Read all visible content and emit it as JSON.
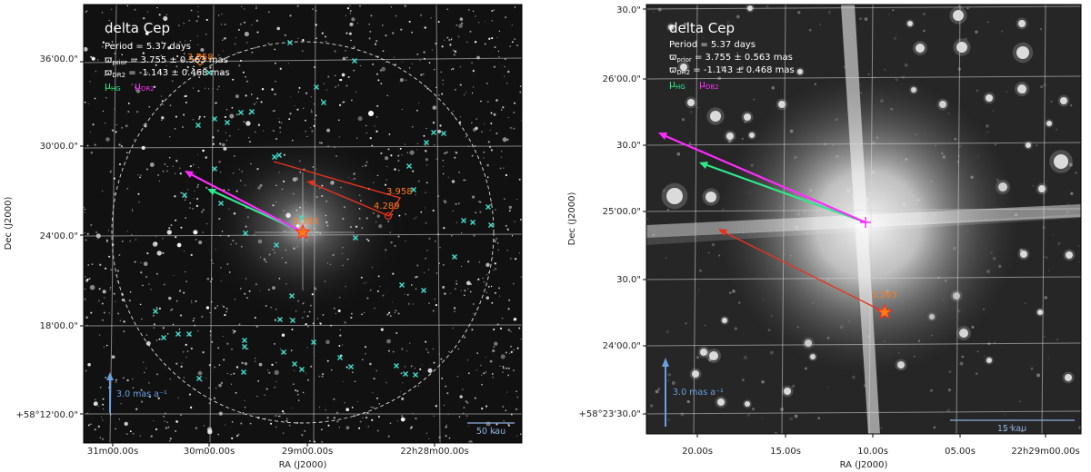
{
  "figure": {
    "description_free": true
  },
  "chart_data": [
    {
      "type": "scatter",
      "panel": "left",
      "title": "delta Cep",
      "period_label": "Period =   5.37 days",
      "parallax_prior": {
        "symbol": "ϖ",
        "sub": "prior",
        "text": " = 3.755 ± 0.563 mas"
      },
      "parallax_dr2": {
        "symbol": "ϖ",
        "sub": "DR2",
        "text": " = -1.143 ± 0.468 mas"
      },
      "legend": [
        {
          "symbol": "μ",
          "sub": "HG",
          "color": "#2ee88a"
        },
        {
          "symbol": "μ",
          "sub": "DR2",
          "color": "#ff2bff"
        }
      ],
      "xlabel": "RA (J2000)",
      "ylabel": "Dec (J2000)",
      "x_ticks": [
        "31m00.00s",
        "30m00.00s",
        "29m00.00s",
        "22h28m00.00s"
      ],
      "y_ticks": [
        "36'00.0\"",
        "30'00.0\"",
        "24'00.0\"",
        "18'00.0\"",
        "+58°12'00.0\""
      ],
      "scale_arrow_label": "3.0 mas a⁻¹",
      "scalebar_label": "50 kau",
      "annotations": [
        "3.393",
        "3.958",
        "4.289",
        "3.558"
      ],
      "neighbors_marker": "x",
      "neighbors_color": "#40e0d0"
    },
    {
      "type": "scatter",
      "panel": "right",
      "title": "delta Cep",
      "period_label": "Period =   5.37 days",
      "parallax_prior": {
        "symbol": "ϖ",
        "sub": "prior",
        "text": " = 3.755 ± 0.563 mas"
      },
      "parallax_dr2": {
        "symbol": "ϖ",
        "sub": "DR2",
        "text": " = -1.143 ± 0.468 mas"
      },
      "legend": [
        {
          "symbol": "μ",
          "sub": "HG",
          "color": "#2ee88a"
        },
        {
          "symbol": "μ",
          "sub": "DR2",
          "color": "#ff2bff"
        }
      ],
      "xlabel": "RA (J2000)",
      "ylabel": "Dec (J2000)",
      "x_ticks": [
        "20.00s",
        "15.00s",
        "10.00s",
        "05.00s",
        "22h29m00.00s"
      ],
      "y_ticks": [
        "30.0\"",
        "26'00.0\"",
        "30.0\"",
        "25'00.0\"",
        "30.0\"",
        "24'00.0\"",
        "+58°23'30.0\""
      ],
      "scale_arrow_label": "3.0 mas a⁻¹",
      "scalebar_label": "15 kau",
      "annotations": [
        "3.393"
      ]
    }
  ],
  "colors": {
    "hg": "#2ee88a",
    "dr2": "#ff2bff",
    "motion": "#e8321e",
    "annot": "#ff7a1a",
    "scale": "#6a9fe0",
    "neighbor": "#40e0d0"
  }
}
